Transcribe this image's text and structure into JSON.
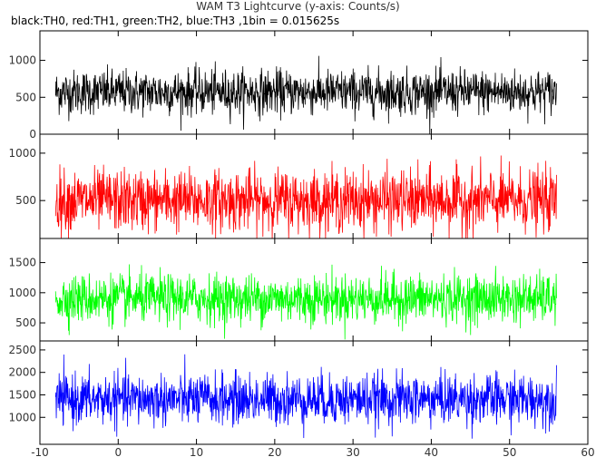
{
  "chart_data": {
    "type": "line",
    "title": "WAM T3 Lightcurve (y-axis: Counts/s)",
    "subtitle": "black:TH0, red:TH1, green:TH2, blue:TH3 ,1bin = 0.015625s",
    "x": {
      "range": [
        -10,
        60
      ],
      "ticks": [
        -10,
        0,
        10,
        20,
        30,
        40,
        50,
        60
      ],
      "data_range": [
        -8,
        56
      ]
    },
    "panels": [
      {
        "color": "#000000",
        "ylim": [
          0,
          1400
        ],
        "yticks": [
          0,
          500,
          1000
        ],
        "mean": 570,
        "spread": 150
      },
      {
        "color": "#ff0000",
        "ylim": [
          100,
          1200
        ],
        "yticks": [
          500,
          1000
        ],
        "mean": 500,
        "spread": 160
      },
      {
        "color": "#00ff00",
        "ylim": [
          200,
          1900
        ],
        "yticks": [
          500,
          1000,
          1500
        ],
        "mean": 900,
        "spread": 200
      },
      {
        "color": "#0000ff",
        "ylim": [
          400,
          2700
        ],
        "yticks": [
          1000,
          1500,
          2000,
          2500
        ],
        "mean": 1400,
        "spread": 280
      }
    ]
  }
}
